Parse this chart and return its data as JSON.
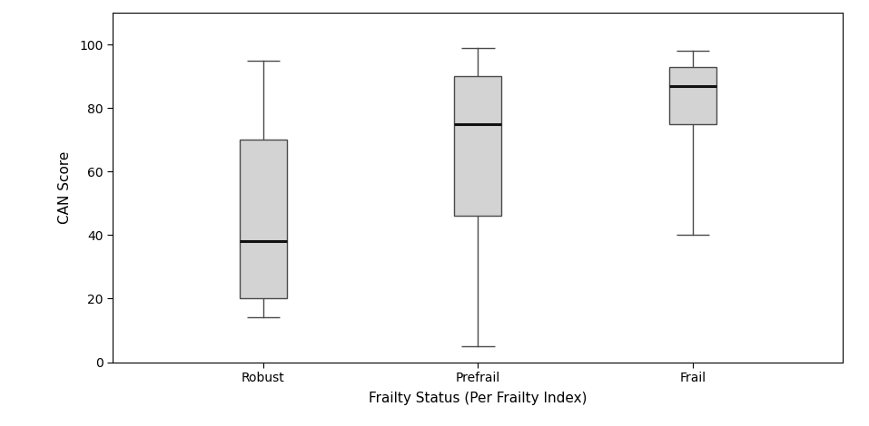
{
  "categories": [
    "Robust",
    "Prefrail",
    "Frail"
  ],
  "boxes": [
    {
      "whisker_low": 14,
      "q1": 20,
      "median": 38,
      "q3": 70,
      "whisker_high": 95
    },
    {
      "whisker_low": 5,
      "q1": 46,
      "median": 75,
      "q3": 90,
      "whisker_high": 99
    },
    {
      "whisker_low": 40,
      "q1": 75,
      "median": 87,
      "q3": 93,
      "whisker_high": 98
    }
  ],
  "ylabel": "CAN Score",
  "xlabel": "Frailty Status (Per Frailty Index)",
  "ylim": [
    0,
    110
  ],
  "yticks": [
    0,
    20,
    40,
    60,
    80,
    100
  ],
  "box_color": "#d3d3d3",
  "box_edge_color": "#4a4a4a",
  "median_color": "#111111",
  "whisker_color": "#4a4a4a",
  "cap_color": "#4a4a4a",
  "background_color": "#ffffff",
  "box_width": 0.22,
  "linewidth": 1.0,
  "median_linewidth": 2.2,
  "positions": [
    1,
    2,
    3
  ],
  "xlim": [
    0.3,
    3.7
  ]
}
